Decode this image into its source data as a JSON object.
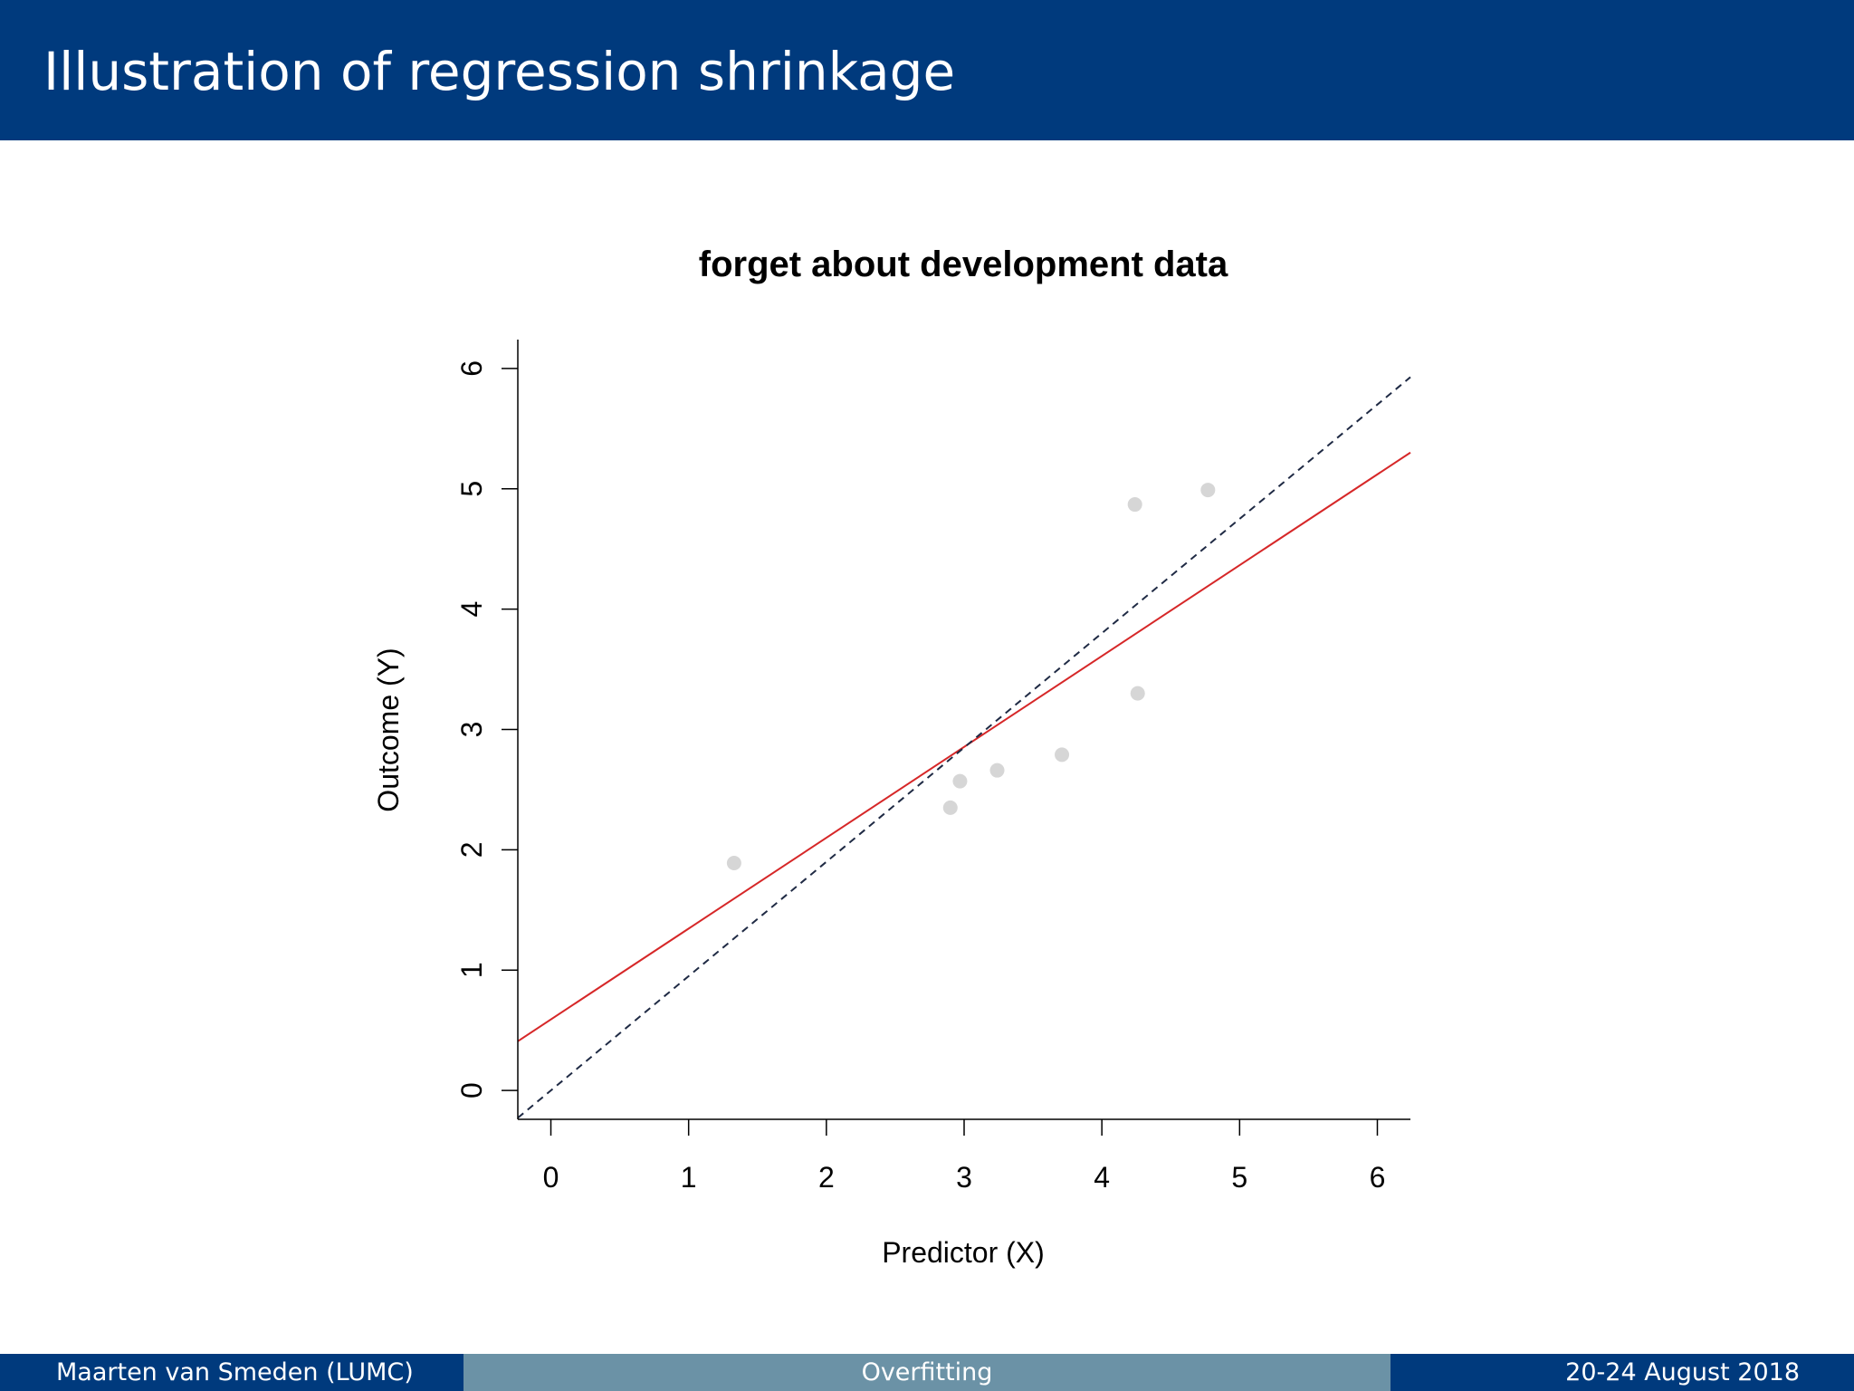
{
  "slide": {
    "title": "Illustration of regression shrinkage"
  },
  "footer": {
    "author": "Maarten van Smeden  (LUMC)",
    "topic": "Overfitting",
    "date": "20-24 August 2018"
  },
  "colors": {
    "header_bg": "#003a7d",
    "footer_mid_bg": "#6b92a6",
    "point": "#d6d6d6",
    "fit_line": "#d62728",
    "identity_line": "#1f2a44"
  },
  "chart_data": {
    "type": "scatter",
    "title": "forget about development data",
    "xlabel": "Predictor (X)",
    "ylabel": "Outcome (Y)",
    "xlim": [
      -0.24,
      6.24
    ],
    "ylim": [
      -0.24,
      6.24
    ],
    "x_ticks": [
      "0",
      "1",
      "2",
      "3",
      "4",
      "5",
      "6"
    ],
    "y_ticks": [
      "0",
      "1",
      "2",
      "3",
      "4",
      "5",
      "6"
    ],
    "grid": false,
    "points": [
      {
        "x": 1.33,
        "y": 1.89
      },
      {
        "x": 2.9,
        "y": 2.35
      },
      {
        "x": 2.97,
        "y": 2.57
      },
      {
        "x": 3.24,
        "y": 2.66
      },
      {
        "x": 3.71,
        "y": 2.79
      },
      {
        "x": 4.24,
        "y": 4.87
      },
      {
        "x": 4.26,
        "y": 3.3
      },
      {
        "x": 4.77,
        "y": 4.99
      }
    ],
    "lines": [
      {
        "style": "solid",
        "color": "#d62728",
        "intercept": 0.59,
        "slope": 0.755
      },
      {
        "style": "dashed",
        "color": "#1f2a44",
        "intercept": 0.0,
        "slope": 0.95
      }
    ]
  }
}
